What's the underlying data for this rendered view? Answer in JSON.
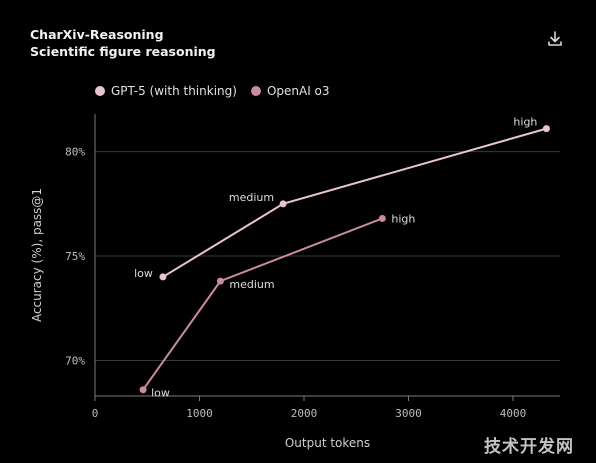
{
  "header": {
    "title": "CharXiv-Reasoning",
    "subtitle": "Scientific figure reasoning"
  },
  "download_icon": "download-icon",
  "watermark": "技术开发网",
  "chart_data": {
    "type": "line",
    "title": "CharXiv-Reasoning",
    "subtitle": "Scientific figure reasoning",
    "xlabel": "Output tokens",
    "ylabel": "Accuracy (%), pass@1",
    "xlim": [
      0,
      4450
    ],
    "ylim": [
      68.3,
      81.8
    ],
    "xticks": [
      0,
      1000,
      2000,
      3000,
      4000
    ],
    "yticks": [
      70,
      75,
      80
    ],
    "ytick_labels": [
      "70%",
      "75%",
      "80%"
    ],
    "grid": "horizontal",
    "legend_position": "top-left",
    "series": [
      {
        "name": "GPT-5 (with thinking)",
        "color": "#e9c4cf",
        "points": [
          {
            "x": 650,
            "y": 74.0,
            "label": "low"
          },
          {
            "x": 1800,
            "y": 77.5,
            "label": "medium"
          },
          {
            "x": 4320,
            "y": 81.1,
            "label": "high"
          }
        ]
      },
      {
        "name": "OpenAI o3",
        "color": "#c98aa3",
        "points": [
          {
            "x": 460,
            "y": 68.6,
            "label": "low"
          },
          {
            "x": 1200,
            "y": 73.8,
            "label": "medium"
          },
          {
            "x": 2750,
            "y": 76.8,
            "label": "high"
          }
        ]
      }
    ]
  }
}
